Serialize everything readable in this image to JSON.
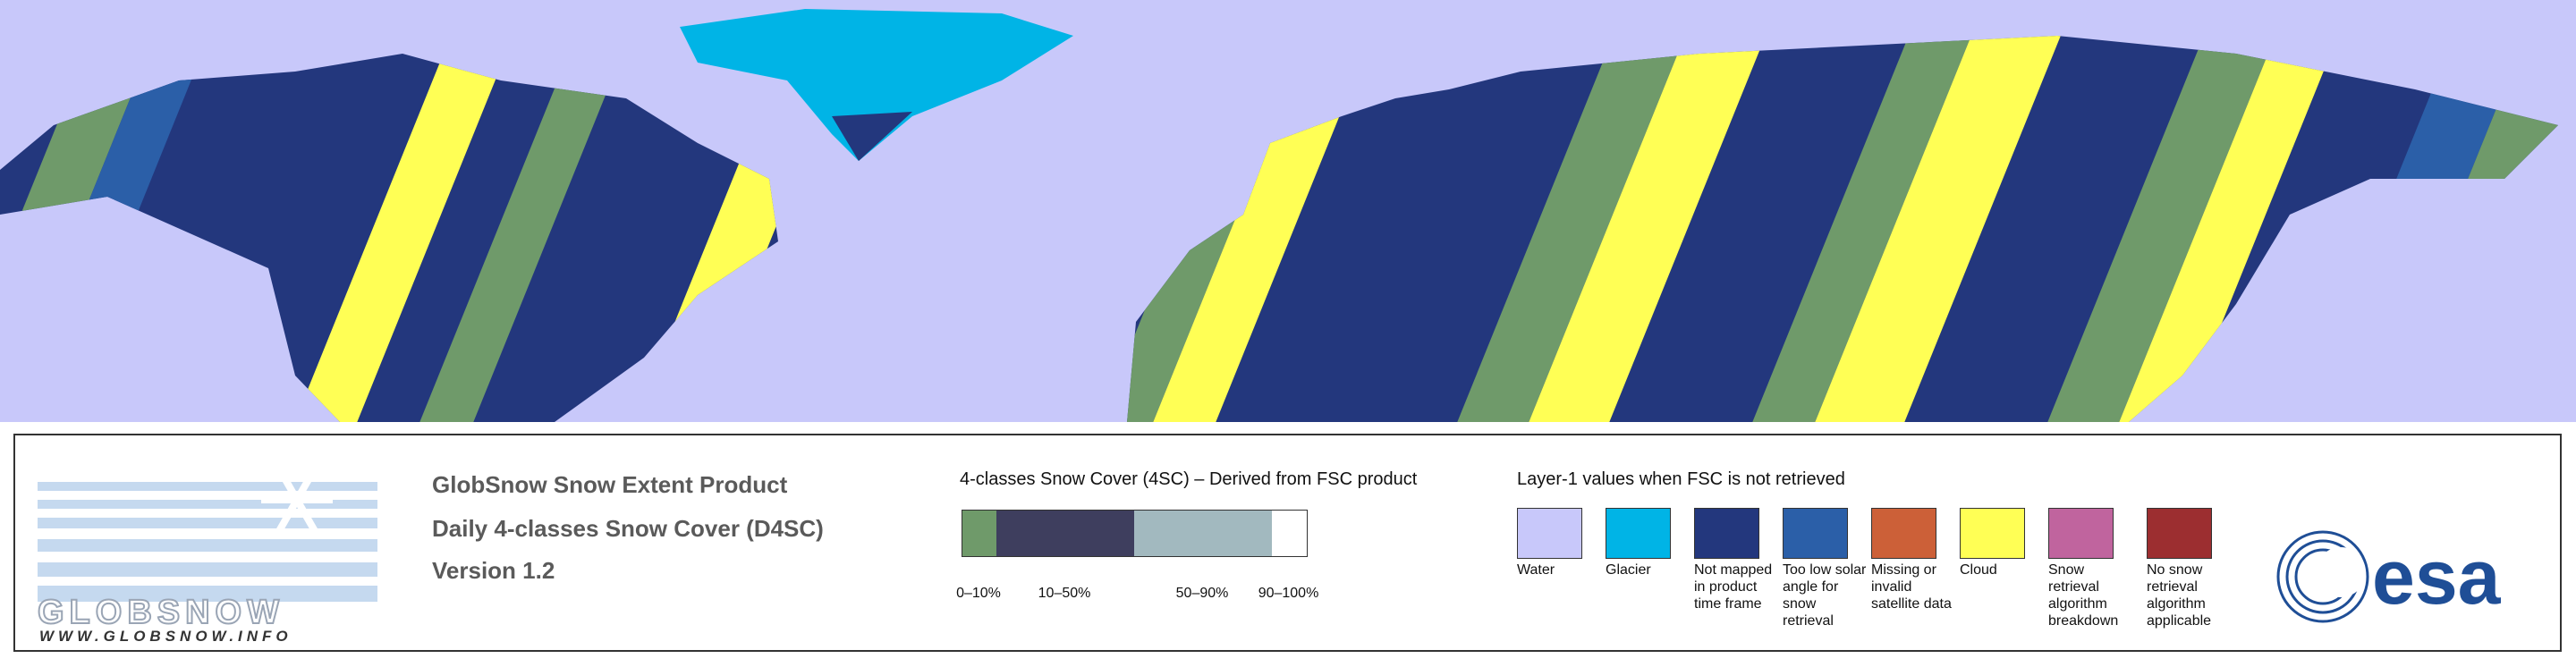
{
  "logo": {
    "name": "GLOBSNOW",
    "url": "WWW.GLOBSNOW.INFO"
  },
  "header": {
    "title": "GlobSnow Snow Extent Product",
    "subtitle": "Daily 4-classes Snow Cover (D4SC)",
    "version": "Version 1.2"
  },
  "snow_cover_legend": {
    "title": "4-classes Snow Cover (4SC) – Derived from FSC product",
    "classes": [
      {
        "label": "0–10%",
        "color": "#6f9a6a"
      },
      {
        "label": "10–50%",
        "color": "#3e3e5e"
      },
      {
        "label": "50–90%",
        "color": "#a2b9bf"
      },
      {
        "label": "90–100%",
        "color": "#ffffff"
      }
    ]
  },
  "layer1_legend": {
    "title": "Layer-1 values when FSC is not retrieved",
    "items": [
      {
        "label": "Water",
        "color": "#c8c8fa"
      },
      {
        "label": "Glacier",
        "color": "#00b4e6"
      },
      {
        "label": "Not mapped in product time frame",
        "color": "#23377d"
      },
      {
        "label": "Too low solar angle for snow retrieval",
        "color": "#2b5fa8"
      },
      {
        "label": "Missing or invalid satellite data",
        "color": "#cc6038"
      },
      {
        "label": "Cloud",
        "color": "#ffff55"
      },
      {
        "label": "Snow retrieval algorithm breakdown",
        "color": "#c0649e"
      },
      {
        "label": "No snow retrieval algorithm applicable",
        "color": "#9c2e30"
      }
    ]
  },
  "agency_logo": "esa"
}
